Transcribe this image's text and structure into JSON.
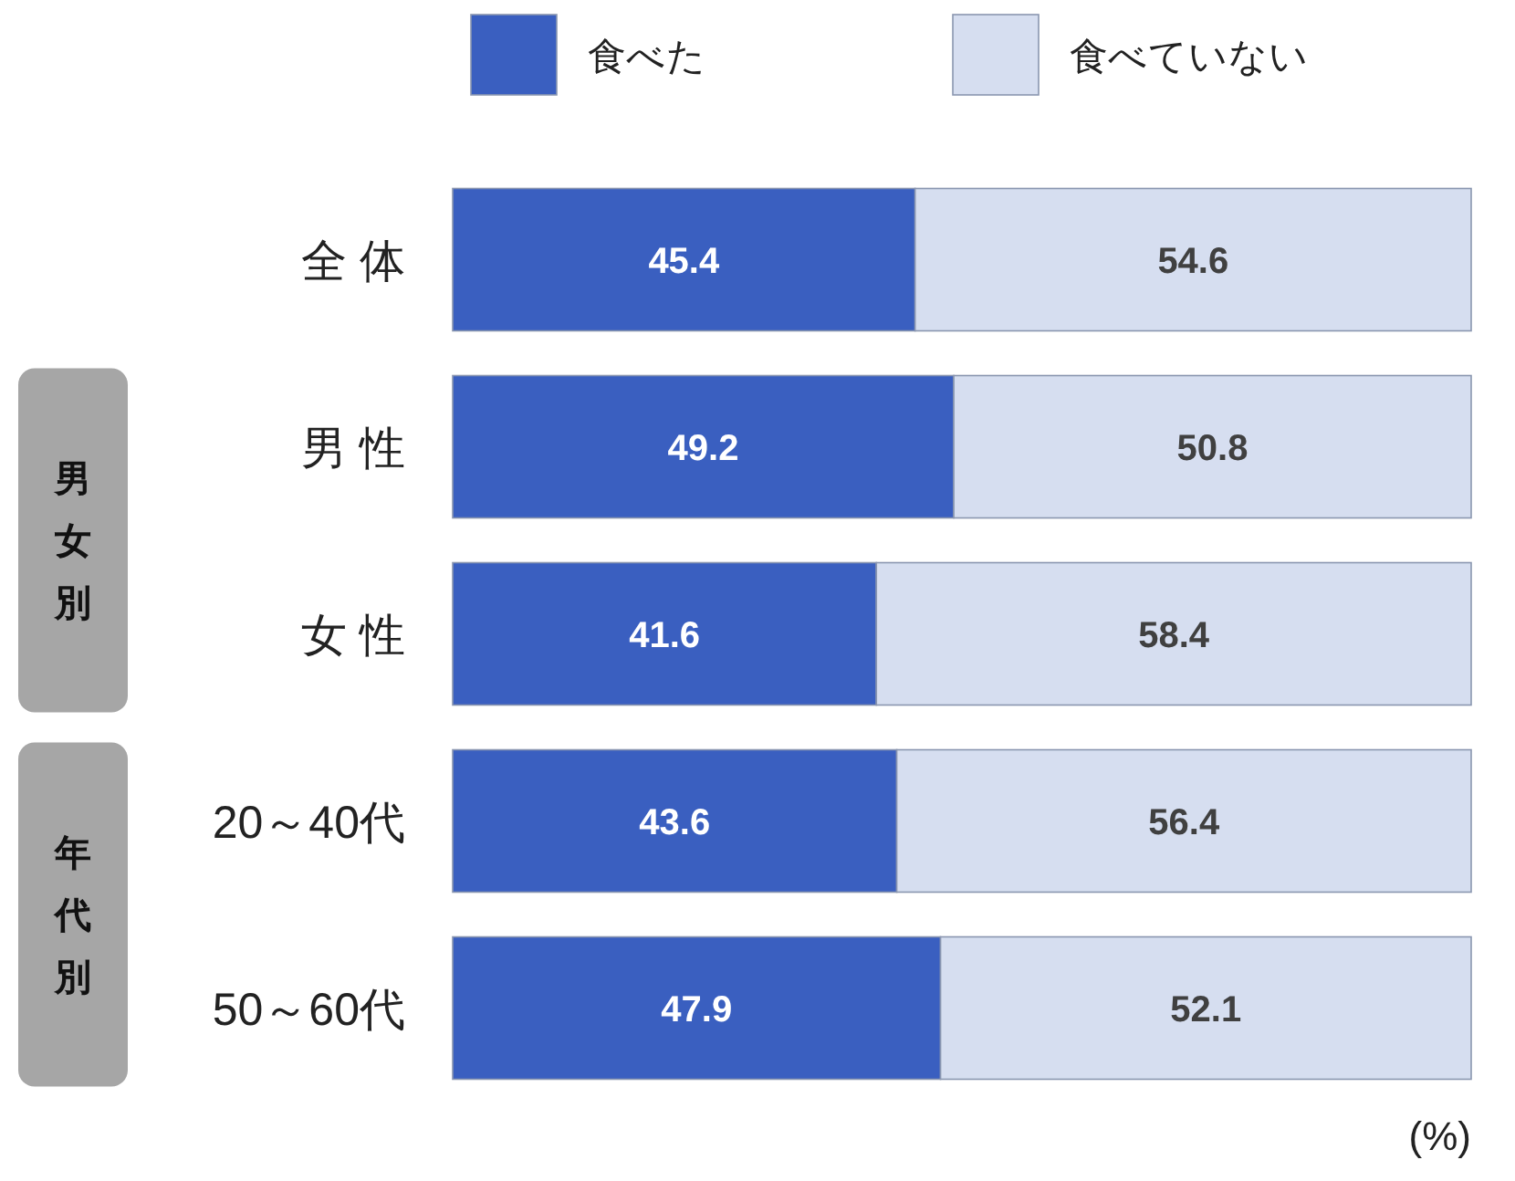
{
  "chart_data": {
    "type": "bar",
    "orientation": "horizontal",
    "stacked": true,
    "data_labels": true,
    "legend": "top",
    "grid": false,
    "categories": [
      "全 体",
      "男 性",
      "女 性",
      "20～40代",
      "50～60代"
    ],
    "series": [
      {
        "name": "食べた",
        "color": "#3a5fc0",
        "values": [
          45.4,
          49.2,
          41.6,
          43.6,
          47.9
        ]
      },
      {
        "name": "食べていない",
        "color": "#d6def0",
        "values": [
          54.6,
          50.8,
          58.4,
          56.4,
          52.1
        ]
      }
    ],
    "annotations": [
      "男女別",
      "年代別",
      "(%)"
    ]
  }
}
